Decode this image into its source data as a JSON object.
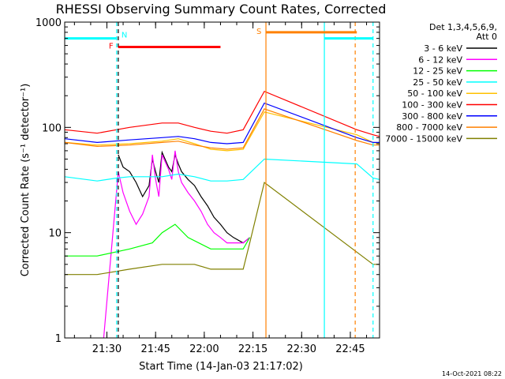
{
  "chart_data": {
    "type": "line",
    "title": "RHESSI Observing Summary Count Rates, Corrected",
    "xlabel": "Start Time (14-Jan-03 21:17:02)",
    "ylabel": "Corrected Count Rate (s⁻¹ detector⁻¹)",
    "yscale": "log",
    "ylim": [
      1,
      1000
    ],
    "xlim_minutes": [
      0,
      97
    ],
    "x_units": "minutes after 21:17:02",
    "x_tick_values": [
      13,
      28,
      43,
      58,
      73,
      88
    ],
    "x_tick_labels": [
      "21:30",
      "21:45",
      "22:00",
      "22:15",
      "22:30",
      "22:45"
    ],
    "y_tick_values": [
      1,
      10,
      100,
      1000
    ],
    "y_tick_labels": [
      "1",
      "10",
      "100",
      "1000"
    ],
    "legend_header": [
      "Det 1,3,4,5,6,9,",
      "Att 0"
    ],
    "series": [
      {
        "name": "3 - 6 keV",
        "color": "#000000",
        "x": [
          16.5,
          18,
          20,
          22,
          24,
          26,
          27,
          28,
          29,
          30,
          32,
          33,
          34,
          35,
          36,
          38,
          40,
          42,
          44,
          46,
          48,
          50,
          52,
          55,
          57
        ],
        "values": [
          55,
          42,
          38,
          30,
          22,
          28,
          50,
          38,
          30,
          58,
          42,
          38,
          55,
          45,
          38,
          32,
          28,
          22,
          18,
          14,
          12,
          10,
          9,
          8,
          9
        ]
      },
      {
        "name": "6 - 12 keV",
        "color": "#ff00ff",
        "x": [
          12,
          16.5,
          18,
          20,
          22,
          24,
          26,
          27,
          28,
          29,
          30,
          32,
          33,
          34,
          35,
          36,
          38,
          40,
          42,
          44,
          46,
          48,
          50,
          52,
          55,
          57
        ],
        "values": [
          1,
          38,
          24,
          16,
          12,
          15,
          22,
          55,
          32,
          22,
          55,
          40,
          32,
          60,
          38,
          30,
          24,
          20,
          16,
          12,
          10,
          9,
          8,
          8,
          8,
          9
        ]
      },
      {
        "name": "12 - 25 keV",
        "color": "#00ff00",
        "x": [
          0,
          10,
          20,
          27,
          30,
          34,
          38,
          45,
          50,
          55,
          57
        ],
        "values": [
          6,
          6,
          7,
          8,
          10,
          12,
          9,
          7,
          7,
          7,
          9
        ]
      },
      {
        "name": "25 - 50 keV",
        "color": "#00ffff",
        "x": [
          0,
          10,
          16,
          20,
          30,
          35,
          40,
          45,
          50,
          55,
          61.5,
          90,
          95,
          97
        ],
        "values": [
          34,
          31,
          33,
          34,
          34,
          36,
          34,
          31,
          31,
          32,
          50,
          45,
          33,
          32
        ]
      },
      {
        "name": "50 - 100 keV",
        "color": "#ffc000",
        "x": [
          0,
          10,
          20,
          30,
          35,
          40,
          45,
          50,
          55,
          61.5,
          90,
          95,
          97
        ],
        "values": [
          72,
          68,
          70,
          74,
          78,
          70,
          62,
          60,
          62,
          140,
          85,
          72,
          70
        ]
      },
      {
        "name": "100 - 300 keV",
        "color": "#ff0000",
        "x": [
          0,
          10,
          20,
          30,
          35,
          40,
          45,
          50,
          55,
          61.5,
          90,
          95,
          97
        ],
        "values": [
          95,
          88,
          100,
          110,
          110,
          100,
          92,
          88,
          95,
          220,
          95,
          85,
          82
        ]
      },
      {
        "name": "300 - 800 keV",
        "color": "#0000ff",
        "x": [
          0,
          10,
          20,
          30,
          35,
          40,
          45,
          50,
          55,
          61.5,
          90,
          95,
          97
        ],
        "values": [
          78,
          72,
          76,
          80,
          82,
          78,
          72,
          70,
          72,
          170,
          80,
          72,
          72
        ]
      },
      {
        "name": "800 - 7000 keV",
        "color": "#ff8000",
        "x": [
          0,
          10,
          20,
          30,
          35,
          40,
          45,
          50,
          55,
          61.5,
          90,
          95,
          97
        ],
        "values": [
          72,
          66,
          68,
          72,
          74,
          68,
          64,
          62,
          64,
          150,
          75,
          68,
          68
        ]
      },
      {
        "name": "7000 - 15000 keV",
        "color": "#808000",
        "x": [
          0,
          10,
          20,
          30,
          35,
          40,
          45,
          50,
          55,
          57,
          61.5,
          95,
          97
        ],
        "values": [
          4,
          4,
          4.5,
          5,
          5,
          5,
          4.5,
          4.5,
          4.5,
          8,
          30,
          5,
          5
        ]
      }
    ],
    "flag_bars": [
      {
        "label": "N",
        "color": "#00ffff",
        "value": 700,
        "segments": [
          [
            0,
            16
          ],
          [
            80,
            95
          ]
        ]
      },
      {
        "label": "F",
        "color": "#ff0000",
        "value": 580,
        "segments": [
          [
            16.5,
            48
          ]
        ]
      },
      {
        "label": "S",
        "color": "#ff8000",
        "value": 800,
        "segments": [
          [
            62,
            90
          ]
        ]
      }
    ],
    "vertical_markers": [
      {
        "x": 16,
        "color": "#00ffff",
        "style": "dashed"
      },
      {
        "x": 16.5,
        "color": "#000000",
        "style": "dashed"
      },
      {
        "x": 62,
        "color": "#ff8000",
        "style": "solid"
      },
      {
        "x": 80,
        "color": "#00ffff",
        "style": "solid"
      },
      {
        "x": 89.5,
        "color": "#ff8000",
        "style": "dashed"
      },
      {
        "x": 95,
        "color": "#00ffff",
        "style": "dashed"
      }
    ],
    "timestamp": "14-Oct-2021 08:22"
  }
}
